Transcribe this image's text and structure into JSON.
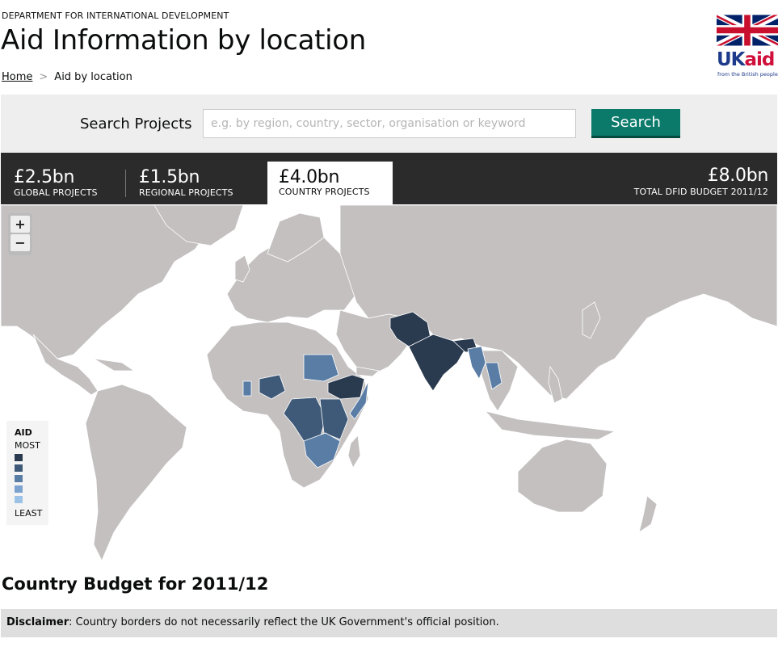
{
  "header": {
    "department": "DEPARTMENT FOR INTERNATIONAL DEVELOPMENT",
    "title": "Aid Information by location",
    "breadcrumb": {
      "home": "Home",
      "separator": ">",
      "current": "Aid by location"
    },
    "logo": {
      "uk": "UK",
      "aid": "aid",
      "tagline": "from the British people"
    }
  },
  "search": {
    "label": "Search Projects",
    "placeholder": "e.g. by region, country, sector, organisation or keyword",
    "button": "Search"
  },
  "budget": {
    "global": {
      "amount": "£2.5bn",
      "label": "GLOBAL PROJECTS"
    },
    "regional": {
      "amount": "£1.5bn",
      "label": "REGIONAL PROJECTS"
    },
    "country": {
      "amount": "£4.0bn",
      "label": "COUNTRY PROJECTS"
    },
    "total": {
      "amount": "£8.0bn",
      "label": "TOTAL DFID BUDGET 2011/12"
    }
  },
  "map": {
    "zoom_in": "+",
    "zoom_out": "−",
    "legend": {
      "title": "AID",
      "most": "MOST",
      "least": "LEAST",
      "colors": [
        "#2a3a4f",
        "#3f5a78",
        "#5a7da6",
        "#7ca2cf",
        "#9cc3e6"
      ]
    },
    "colors": {
      "land": "#c4c0c0",
      "water": "#ffffff",
      "border": "#ffffff"
    }
  },
  "section_title": "Country Budget for 2011/12",
  "disclaimer": {
    "label": "Disclaimer",
    "text": ": Country borders do not necessarily reflect the UK Government's official position."
  },
  "colors": {
    "accent": "#0b7a6b",
    "bar": "#2b2b2b"
  }
}
